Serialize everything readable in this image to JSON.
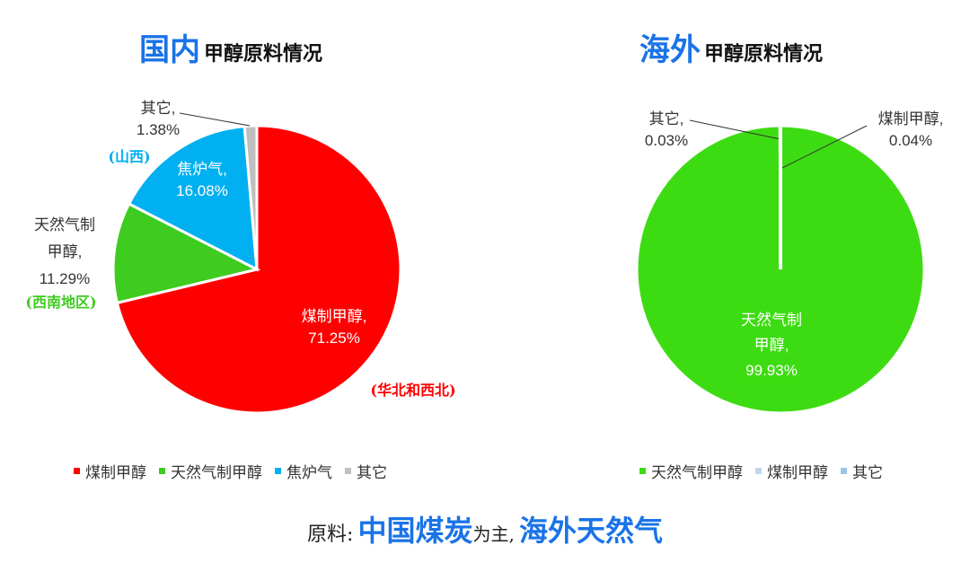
{
  "titles": {
    "domestic": {
      "highlight": "国内",
      "rest": "甲醇原料情况"
    },
    "overseas": {
      "highlight": "海外",
      "rest": "甲醇原料情况"
    }
  },
  "chart_data": [
    {
      "type": "pie",
      "title": "国内甲醇原料情况",
      "slices": [
        {
          "name": "煤制甲醇",
          "value": 71.25,
          "label_lines": [
            "煤制甲醇,",
            "71.25%"
          ],
          "color": "#ff0000"
        },
        {
          "name": "天然气制甲醇",
          "value": 11.29,
          "label_lines": [
            "天然气制",
            "甲醇,",
            "11.29%"
          ],
          "color": "#3dcc1f"
        },
        {
          "name": "焦炉气",
          "value": 16.08,
          "label_lines": [
            "焦炉气,",
            "16.08%"
          ],
          "color": "#00b0f0"
        },
        {
          "name": "其它",
          "value": 1.38,
          "label_lines": [
            "其它,",
            "1.38%"
          ],
          "color": "#bfbfbf"
        }
      ],
      "legend": [
        "煤制甲醇",
        "天然气制甲醇",
        "焦炉气",
        "其它"
      ],
      "legend_placement": "bottom",
      "annotations": [
        {
          "text": "(华北和西北)",
          "color": "#ff0000"
        },
        {
          "text": "(西南地区)",
          "color": "#3dcc1f"
        },
        {
          "text": "(山西)",
          "color": "#00b0f0"
        }
      ]
    },
    {
      "type": "pie",
      "title": "海外甲醇原料情况",
      "slices": [
        {
          "name": "天然气制甲醇",
          "value": 99.93,
          "label_lines": [
            "天然气制",
            "甲醇,",
            "99.93%"
          ],
          "color": "#3ddc12"
        },
        {
          "name": "煤制甲醇",
          "value": 0.04,
          "label_lines": [
            "煤制甲醇,",
            "0.04%"
          ],
          "color": "#bfd7ee"
        },
        {
          "name": "其它",
          "value": 0.03,
          "label_lines": [
            "其它,",
            "0.03%"
          ],
          "color": "#9dc3e6"
        }
      ],
      "legend": [
        "天然气制甲醇",
        "煤制甲醇",
        "其它"
      ],
      "legend_placement": "bottom"
    }
  ],
  "footer": {
    "prefix": "原料:",
    "main": "中国煤炭",
    "middle": "为主,",
    "end": "海外天然气"
  }
}
